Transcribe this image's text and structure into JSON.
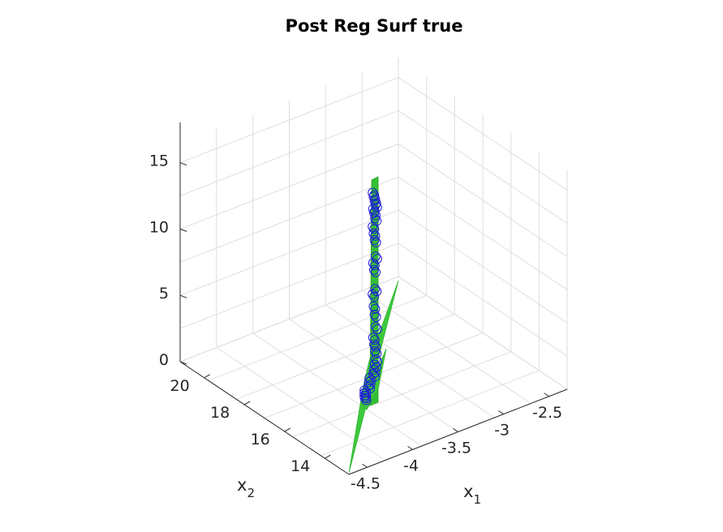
{
  "chart_data": {
    "type": "scatter",
    "title": "Post Reg Surf true",
    "axes": {
      "x": {
        "label": "x",
        "label_subscript": "1",
        "ticks": [
          "-4.5",
          "-4",
          "-3.5",
          "-3",
          "-2.5"
        ],
        "range": [
          -4.7,
          -2.3
        ]
      },
      "y": {
        "label": "x",
        "label_subscript": "2",
        "ticks": [
          "14",
          "16",
          "18",
          "20"
        ],
        "range": [
          12.8,
          21.2
        ]
      },
      "z": {
        "label": "",
        "ticks": [
          "0",
          "5",
          "10",
          "15"
        ],
        "range": [
          0,
          16.5
        ]
      }
    },
    "grid": true,
    "surface": {
      "color": "#3dc93d",
      "description_visible": "surf"
    },
    "marker_color": "#1f1fd6",
    "points": [
      {
        "z": 15.3
      },
      {
        "z": 15.0
      },
      {
        "z": 14.7
      },
      {
        "z": 14.4
      },
      {
        "z": 14.1
      },
      {
        "z": 13.8
      },
      {
        "z": 13.4
      },
      {
        "z": 12.8
      },
      {
        "z": 12.3
      },
      {
        "z": 11.8
      },
      {
        "z": 10.6
      },
      {
        "z": 10.1
      },
      {
        "z": 9.6
      },
      {
        "z": 8.2
      },
      {
        "z": 7.8
      },
      {
        "z": 6.9
      },
      {
        "z": 6.3
      },
      {
        "z": 5.4
      },
      {
        "z": 4.6
      },
      {
        "z": 4.1
      },
      {
        "z": 3.6
      },
      {
        "z": 3.0
      },
      {
        "z": 2.6
      },
      {
        "z": 2.2
      },
      {
        "z": 1.9
      },
      {
        "z": 1.6
      },
      {
        "z": 1.3
      },
      {
        "z": 1.0
      },
      {
        "z": 0.7
      },
      {
        "z": 0.5
      },
      {
        "z": 0.3
      },
      {
        "z": 0.15
      }
    ]
  }
}
